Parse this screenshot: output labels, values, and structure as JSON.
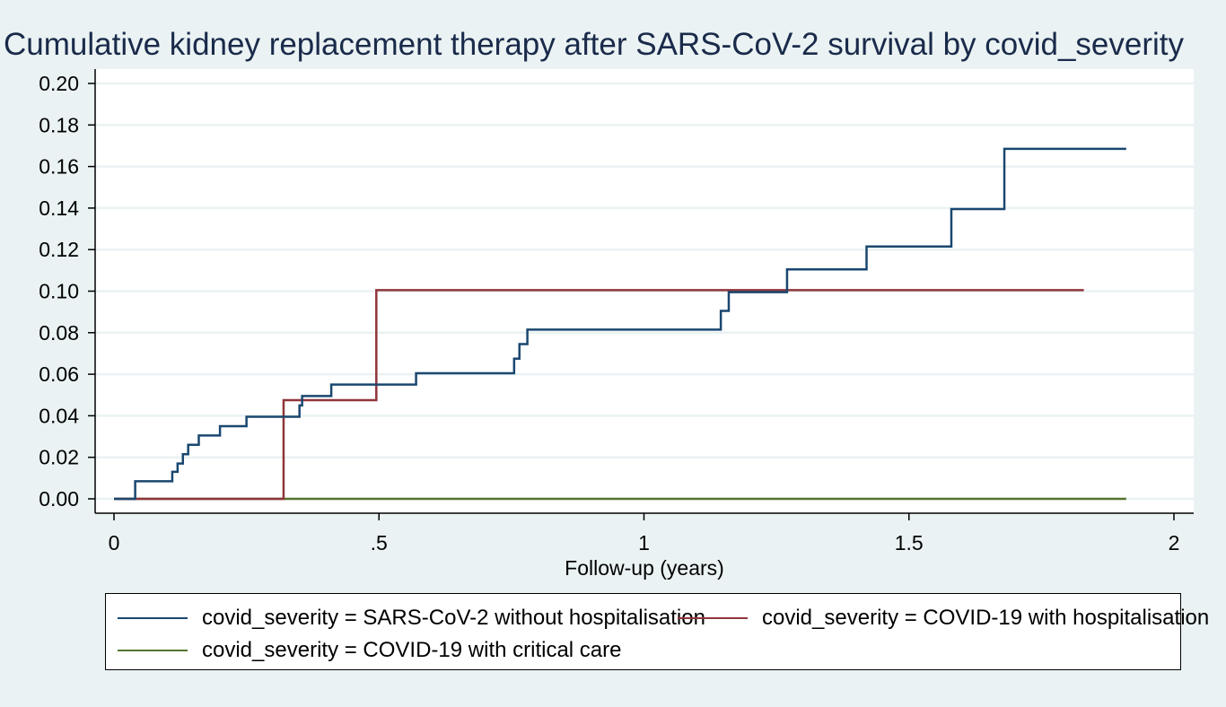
{
  "chart_data": {
    "type": "line",
    "step": true,
    "title": "Cumulative kidney replacement therapy after SARS-CoV-2 survival by covid_severity",
    "xlabel": "Follow-up (years)",
    "ylabel": "",
    "xlim": [
      0,
      2
    ],
    "ylim": [
      0,
      0.2
    ],
    "xticks": [
      0,
      0.5,
      1,
      1.5,
      2
    ],
    "xtick_labels": [
      "0",
      ".5",
      "1",
      "1.5",
      "2"
    ],
    "yticks": [
      0,
      0.02,
      0.04,
      0.06,
      0.08,
      0.1,
      0.12,
      0.14,
      0.16,
      0.18,
      0.2
    ],
    "ytick_labels": [
      "0.00",
      "0.02",
      "0.04",
      "0.06",
      "0.08",
      "0.10",
      "0.12",
      "0.14",
      "0.16",
      "0.18",
      "0.20"
    ],
    "grid": true,
    "legend_position": "bottom",
    "series": [
      {
        "name": "covid_severity = SARS-CoV-2 without hospitalisation",
        "color": "#1a476f",
        "x": [
          0,
          0.04,
          0.11,
          0.12,
          0.13,
          0.14,
          0.16,
          0.2,
          0.25,
          0.35,
          0.355,
          0.41,
          0.57,
          0.755,
          0.765,
          0.78,
          1.145,
          1.16,
          1.27,
          1.42,
          1.58,
          1.68,
          1.91
        ],
        "y": [
          0,
          0.0085,
          0.013,
          0.017,
          0.0215,
          0.026,
          0.0305,
          0.035,
          0.0395,
          0.045,
          0.0495,
          0.055,
          0.0605,
          0.0675,
          0.0745,
          0.0815,
          0.0905,
          0.0995,
          0.1105,
          0.1215,
          0.1395,
          0.1685,
          0.1685
        ]
      },
      {
        "name": "covid_severity = COVID-19 with hospitalisation",
        "color": "#90353b",
        "x": [
          0,
          0.32,
          0.495,
          1.83
        ],
        "y": [
          0,
          0.0475,
          0.1005,
          0.1005
        ]
      },
      {
        "name": "covid_severity = COVID-19 with critical care",
        "color": "#55752f",
        "x": [
          0,
          1.91
        ],
        "y": [
          0,
          0
        ]
      }
    ]
  }
}
